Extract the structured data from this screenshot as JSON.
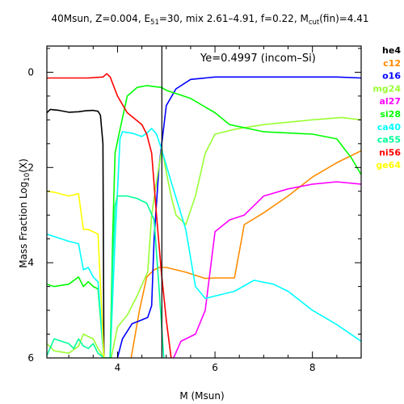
{
  "title": {
    "part1": "40Msun, Z=0.004, E",
    "e_sub": "51",
    "part2": "=30, mix 2.61–4.91, f=0.22, M",
    "m_sub": "cut",
    "part3": "(fin)=4.41"
  },
  "annotation": "Ye=0.4997 (incom–Si)",
  "xlabel": "M (Msun)",
  "ylabel_main": "Mass Fraction Log",
  "ylabel_sub": "10",
  "ylabel_tail": "(X)",
  "chart_data": {
    "type": "line",
    "xlim": [
      2.55,
      9.0
    ],
    "ylim": [
      -6.0,
      0.55
    ],
    "x_ticks": [
      4,
      6,
      8
    ],
    "x_tick_labels": [
      "4",
      "6",
      "8"
    ],
    "y_ticks": [
      0,
      -2,
      -4,
      -6
    ],
    "y_tick_labels": [
      "0",
      "2",
      "4",
      "6"
    ],
    "vline_x": 4.91,
    "legend_placement": "right-outside",
    "series": [
      {
        "name": "he4",
        "color": "#000000",
        "points": [
          [
            2.55,
            -0.85
          ],
          [
            2.62,
            -0.78
          ],
          [
            2.8,
            -0.8
          ],
          [
            3.0,
            -0.84
          ],
          [
            3.2,
            -0.83
          ],
          [
            3.35,
            -0.81
          ],
          [
            3.5,
            -0.8
          ],
          [
            3.6,
            -0.82
          ],
          [
            3.65,
            -0.9
          ],
          [
            3.7,
            -1.5
          ],
          [
            3.72,
            -6.0
          ]
        ]
      },
      {
        "name": "c12",
        "color": "#ff8c00",
        "points": [
          [
            4.28,
            -6.0
          ],
          [
            4.45,
            -5.0
          ],
          [
            4.6,
            -4.3
          ],
          [
            4.75,
            -4.15
          ],
          [
            4.85,
            -4.1
          ],
          [
            5.0,
            -4.1
          ],
          [
            5.4,
            -4.2
          ],
          [
            5.8,
            -4.33
          ],
          [
            6.0,
            -4.32
          ],
          [
            6.4,
            -4.32
          ],
          [
            6.6,
            -3.2
          ],
          [
            7.0,
            -2.95
          ],
          [
            7.5,
            -2.6
          ],
          [
            8.0,
            -2.2
          ],
          [
            8.5,
            -1.9
          ],
          [
            9.0,
            -1.65
          ]
        ]
      },
      {
        "name": "o16",
        "color": "#0000ff",
        "points": [
          [
            4.0,
            -6.0
          ],
          [
            4.1,
            -5.6
          ],
          [
            4.3,
            -5.28
          ],
          [
            4.5,
            -5.2
          ],
          [
            4.62,
            -5.15
          ],
          [
            4.7,
            -4.9
          ],
          [
            4.75,
            -3.5
          ],
          [
            4.85,
            -2.0
          ],
          [
            5.0,
            -0.7
          ],
          [
            5.2,
            -0.35
          ],
          [
            5.5,
            -0.15
          ],
          [
            6.0,
            -0.1
          ],
          [
            7.0,
            -0.1
          ],
          [
            8.0,
            -0.1
          ],
          [
            8.5,
            -0.1
          ],
          [
            9.0,
            -0.12
          ]
        ]
      },
      {
        "name": "mg24",
        "color": "#99ff33",
        "points": [
          [
            2.55,
            -5.7
          ],
          [
            2.7,
            -5.85
          ],
          [
            3.0,
            -5.9
          ],
          [
            3.2,
            -5.75
          ],
          [
            3.3,
            -5.5
          ],
          [
            3.4,
            -5.55
          ],
          [
            3.5,
            -5.6
          ],
          [
            3.6,
            -5.8
          ],
          [
            3.72,
            -6.0
          ],
          [
            3.87,
            -6.0
          ],
          [
            4.0,
            -5.35
          ],
          [
            4.2,
            -5.1
          ],
          [
            4.4,
            -4.7
          ],
          [
            4.55,
            -4.35
          ],
          [
            4.62,
            -4.2
          ],
          [
            4.7,
            -3.0
          ],
          [
            4.8,
            -2.3
          ],
          [
            4.91,
            -1.6
          ],
          [
            5.0,
            -2.1
          ],
          [
            5.1,
            -2.6
          ],
          [
            5.2,
            -3.0
          ],
          [
            5.4,
            -3.2
          ],
          [
            5.6,
            -2.6
          ],
          [
            5.8,
            -1.7
          ],
          [
            6.0,
            -1.3
          ],
          [
            6.4,
            -1.2
          ],
          [
            7.0,
            -1.1
          ],
          [
            8.0,
            -1.0
          ],
          [
            8.6,
            -0.95
          ],
          [
            9.0,
            -1.0
          ]
        ]
      },
      {
        "name": "al27",
        "color": "#ff00ff",
        "points": [
          [
            5.15,
            -6.0
          ],
          [
            5.3,
            -5.65
          ],
          [
            5.6,
            -5.5
          ],
          [
            5.8,
            -5.0
          ],
          [
            6.0,
            -3.35
          ],
          [
            6.3,
            -3.1
          ],
          [
            6.6,
            -3.0
          ],
          [
            7.0,
            -2.6
          ],
          [
            7.5,
            -2.45
          ],
          [
            8.0,
            -2.35
          ],
          [
            8.5,
            -2.3
          ],
          [
            9.0,
            -2.35
          ]
        ]
      },
      {
        "name": "si28",
        "color": "#00ff00",
        "points": [
          [
            2.55,
            -4.45
          ],
          [
            2.7,
            -4.5
          ],
          [
            3.0,
            -4.45
          ],
          [
            3.2,
            -4.3
          ],
          [
            3.3,
            -4.5
          ],
          [
            3.4,
            -4.4
          ],
          [
            3.5,
            -4.5
          ],
          [
            3.6,
            -4.55
          ],
          [
            3.72,
            -6.0
          ],
          [
            3.85,
            -6.0
          ],
          [
            3.9,
            -3.5
          ],
          [
            3.95,
            -1.7
          ],
          [
            4.05,
            -1.2
          ],
          [
            4.2,
            -0.5
          ],
          [
            4.4,
            -0.32
          ],
          [
            4.6,
            -0.28
          ],
          [
            4.91,
            -0.32
          ],
          [
            5.0,
            -0.38
          ],
          [
            5.5,
            -0.55
          ],
          [
            6.0,
            -0.85
          ],
          [
            6.3,
            -1.1
          ],
          [
            7.0,
            -1.25
          ],
          [
            8.0,
            -1.3
          ],
          [
            8.5,
            -1.4
          ],
          [
            8.8,
            -1.8
          ],
          [
            9.0,
            -2.15
          ]
        ]
      },
      {
        "name": "ca40",
        "color": "#00ffff",
        "points": [
          [
            2.55,
            -3.4
          ],
          [
            2.7,
            -3.45
          ],
          [
            3.0,
            -3.55
          ],
          [
            3.2,
            -3.6
          ],
          [
            3.3,
            -4.15
          ],
          [
            3.4,
            -4.1
          ],
          [
            3.5,
            -4.3
          ],
          [
            3.6,
            -4.4
          ],
          [
            3.72,
            -6.0
          ],
          [
            3.85,
            -6.0
          ],
          [
            3.95,
            -3.5
          ],
          [
            4.0,
            -2.5
          ],
          [
            4.05,
            -1.4
          ],
          [
            4.1,
            -1.25
          ],
          [
            4.3,
            -1.28
          ],
          [
            4.5,
            -1.35
          ],
          [
            4.6,
            -1.28
          ],
          [
            4.7,
            -1.18
          ],
          [
            4.8,
            -1.3
          ],
          [
            4.9,
            -1.6
          ],
          [
            5.1,
            -2.3
          ],
          [
            5.4,
            -3.3
          ],
          [
            5.6,
            -4.5
          ],
          [
            5.8,
            -4.75
          ],
          [
            6.0,
            -4.7
          ],
          [
            6.4,
            -4.6
          ],
          [
            6.8,
            -4.37
          ],
          [
            7.2,
            -4.45
          ],
          [
            7.5,
            -4.6
          ],
          [
            8.0,
            -5.0
          ],
          [
            8.5,
            -5.3
          ],
          [
            9.0,
            -5.65
          ]
        ]
      },
      {
        "name": "ca55",
        "color": "#00ff99",
        "points": [
          [
            2.55,
            -5.95
          ],
          [
            2.7,
            -5.6
          ],
          [
            3.0,
            -5.7
          ],
          [
            3.1,
            -5.8
          ],
          [
            3.2,
            -5.6
          ],
          [
            3.3,
            -5.75
          ],
          [
            3.4,
            -5.8
          ],
          [
            3.5,
            -5.7
          ],
          [
            3.6,
            -5.9
          ],
          [
            3.72,
            -6.0
          ],
          [
            3.85,
            -6.0
          ],
          [
            3.9,
            -4.0
          ],
          [
            3.95,
            -2.8
          ],
          [
            4.0,
            -2.6
          ],
          [
            4.2,
            -2.6
          ],
          [
            4.4,
            -2.65
          ],
          [
            4.6,
            -2.75
          ],
          [
            4.75,
            -3.1
          ],
          [
            4.85,
            -4.5
          ],
          [
            4.95,
            -6.0
          ]
        ]
      },
      {
        "name": "ni56",
        "color": "#ff0000",
        "points": [
          [
            2.55,
            -0.12
          ],
          [
            3.0,
            -0.12
          ],
          [
            3.4,
            -0.12
          ],
          [
            3.7,
            -0.1
          ],
          [
            3.78,
            -0.03
          ],
          [
            3.85,
            -0.1
          ],
          [
            4.0,
            -0.5
          ],
          [
            4.2,
            -0.85
          ],
          [
            4.5,
            -1.1
          ],
          [
            4.6,
            -1.3
          ],
          [
            4.7,
            -1.7
          ],
          [
            4.8,
            -3.0
          ],
          [
            4.9,
            -4.2
          ],
          [
            5.0,
            -5.2
          ],
          [
            5.1,
            -6.0
          ]
        ]
      },
      {
        "name": "ge64",
        "color": "#ffff00",
        "points": [
          [
            2.55,
            -2.5
          ],
          [
            2.7,
            -2.52
          ],
          [
            3.0,
            -2.6
          ],
          [
            3.2,
            -2.55
          ],
          [
            3.3,
            -3.3
          ],
          [
            3.4,
            -3.3
          ],
          [
            3.5,
            -3.35
          ],
          [
            3.6,
            -3.4
          ],
          [
            3.72,
            -6.0
          ]
        ]
      }
    ]
  }
}
